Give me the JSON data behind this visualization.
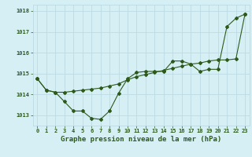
{
  "title": "Graphe pression niveau de la mer (hPa)",
  "hours": [
    0,
    1,
    2,
    3,
    4,
    5,
    6,
    7,
    8,
    9,
    10,
    11,
    12,
    13,
    14,
    15,
    16,
    17,
    18,
    19,
    20,
    21,
    22,
    23
  ],
  "line_smooth": [
    1014.75,
    1014.2,
    1014.1,
    1014.1,
    1014.15,
    1014.2,
    1014.25,
    1014.3,
    1014.4,
    1014.5,
    1014.7,
    1014.85,
    1014.95,
    1015.05,
    1015.15,
    1015.25,
    1015.35,
    1015.45,
    1015.5,
    1015.6,
    1015.65,
    1015.65,
    1015.7,
    1017.85
  ],
  "line_noisy": [
    1014.75,
    1014.2,
    1014.1,
    1013.65,
    1013.2,
    1013.2,
    1012.85,
    1012.8,
    1013.2,
    1014.05,
    1014.75,
    1015.05,
    1015.1,
    1015.1,
    1015.1,
    1015.6,
    1015.6,
    1015.45,
    1015.1,
    1015.2,
    1015.2,
    1017.25,
    1017.65,
    1017.85
  ],
  "line_color": "#2d5a1b",
  "bg_color": "#d6eff5",
  "grid_color": "#b8d8e0",
  "ylim": [
    1012.5,
    1018.3
  ],
  "yticks": [
    1013,
    1014,
    1015,
    1016,
    1017,
    1018
  ],
  "marker": "D",
  "marker_size": 2.0,
  "linewidth": 0.8,
  "title_fontsize": 6.5,
  "tick_fontsize": 5.0,
  "line_color2": "#3a7a25"
}
